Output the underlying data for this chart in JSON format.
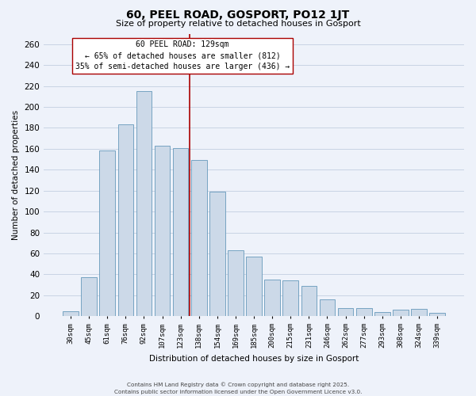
{
  "title": "60, PEEL ROAD, GOSPORT, PO12 1JT",
  "subtitle": "Size of property relative to detached houses in Gosport",
  "xlabel": "Distribution of detached houses by size in Gosport",
  "ylabel": "Number of detached properties",
  "bar_labels": [
    "30sqm",
    "45sqm",
    "61sqm",
    "76sqm",
    "92sqm",
    "107sqm",
    "123sqm",
    "138sqm",
    "154sqm",
    "169sqm",
    "185sqm",
    "200sqm",
    "215sqm",
    "231sqm",
    "246sqm",
    "262sqm",
    "277sqm",
    "293sqm",
    "308sqm",
    "324sqm",
    "339sqm"
  ],
  "bar_values": [
    5,
    37,
    158,
    183,
    215,
    163,
    161,
    149,
    119,
    63,
    57,
    35,
    34,
    29,
    16,
    8,
    8,
    4,
    6,
    7,
    3
  ],
  "bar_color": "#ccd9e8",
  "bar_edge_color": "#6699bb",
  "grid_color": "#c8d4e4",
  "background_color": "#eef2fa",
  "vline_index": 7,
  "vline_color": "#aa0000",
  "annotation_title": "60 PEEL ROAD: 129sqm",
  "annotation_line1": "← 65% of detached houses are smaller (812)",
  "annotation_line2": "35% of semi-detached houses are larger (436) →",
  "annotation_box_color": "#ffffff",
  "annotation_box_edge": "#aa0000",
  "ylim": [
    0,
    270
  ],
  "yticks": [
    0,
    20,
    40,
    60,
    80,
    100,
    120,
    140,
    160,
    180,
    200,
    220,
    240,
    260
  ],
  "footer1": "Contains HM Land Registry data © Crown copyright and database right 2025.",
  "footer2": "Contains public sector information licensed under the Open Government Licence v3.0."
}
